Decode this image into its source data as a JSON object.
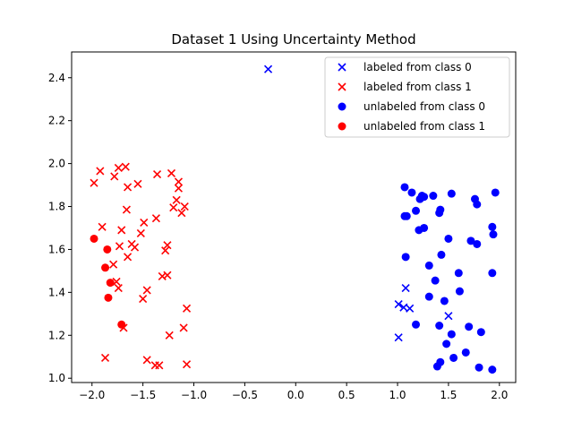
{
  "chart_data": {
    "type": "scatter",
    "title": "Dataset 1 Using Uncertainty Method",
    "xlabel": "",
    "ylabel": "",
    "xlim": [
      -2.2,
      2.16
    ],
    "ylim": [
      0.98,
      2.52
    ],
    "xticks": [
      -2.0,
      -1.5,
      -1.0,
      -0.5,
      0.0,
      0.5,
      1.0,
      1.5,
      2.0
    ],
    "xtick_labels": [
      "−2.0",
      "−1.5",
      "−1.0",
      "−0.5",
      "0.0",
      "0.5",
      "1.0",
      "1.5",
      "2.0"
    ],
    "yticks": [
      1.0,
      1.2,
      1.4,
      1.6,
      1.8,
      2.0,
      2.2,
      2.4
    ],
    "ytick_labels": [
      "1.0",
      "1.2",
      "1.4",
      "1.6",
      "1.8",
      "2.0",
      "2.2",
      "2.4"
    ],
    "grid": false,
    "legend_position": "top-right",
    "series": [
      {
        "name": "labeled from class 0",
        "marker": "x",
        "color": "#0000ff",
        "points": [
          [
            -0.27,
            2.44
          ],
          [
            1.01,
            1.345
          ],
          [
            1.06,
            1.33
          ],
          [
            1.08,
            1.42
          ],
          [
            1.12,
            1.325
          ],
          [
            1.01,
            1.19
          ],
          [
            1.5,
            1.29
          ]
        ]
      },
      {
        "name": "labeled from class 1",
        "marker": "x",
        "color": "#ff0000",
        "points": [
          [
            -1.92,
            1.965
          ],
          [
            -1.74,
            1.98
          ],
          [
            -1.67,
            1.985
          ],
          [
            -1.22,
            1.955
          ],
          [
            -1.36,
            1.95
          ],
          [
            -1.78,
            1.94
          ],
          [
            -1.98,
            1.91
          ],
          [
            -1.55,
            1.905
          ],
          [
            -1.65,
            1.89
          ],
          [
            -1.15,
            1.915
          ],
          [
            -1.15,
            1.885
          ],
          [
            -1.17,
            1.83
          ],
          [
            -1.09,
            1.8
          ],
          [
            -1.2,
            1.795
          ],
          [
            -1.66,
            1.785
          ],
          [
            -1.12,
            1.77
          ],
          [
            -1.37,
            1.745
          ],
          [
            -1.49,
            1.725
          ],
          [
            -1.9,
            1.705
          ],
          [
            -1.71,
            1.69
          ],
          [
            -1.52,
            1.675
          ],
          [
            -1.61,
            1.625
          ],
          [
            -1.26,
            1.62
          ],
          [
            -1.58,
            1.61
          ],
          [
            -1.73,
            1.615
          ],
          [
            -1.28,
            1.595
          ],
          [
            -1.65,
            1.565
          ],
          [
            -1.79,
            1.53
          ],
          [
            -1.26,
            1.48
          ],
          [
            -1.31,
            1.475
          ],
          [
            -1.76,
            1.45
          ],
          [
            -1.74,
            1.42
          ],
          [
            -1.46,
            1.41
          ],
          [
            -1.5,
            1.37
          ],
          [
            -1.07,
            1.325
          ],
          [
            -1.69,
            1.235
          ],
          [
            -1.1,
            1.235
          ],
          [
            -1.24,
            1.2
          ],
          [
            -1.87,
            1.095
          ],
          [
            -1.46,
            1.085
          ],
          [
            -1.38,
            1.06
          ],
          [
            -1.34,
            1.06
          ],
          [
            -1.07,
            1.065
          ]
        ]
      },
      {
        "name": "unlabeled from class 0",
        "marker": "o",
        "color": "#0000ff",
        "points": [
          [
            1.07,
            1.89
          ],
          [
            1.14,
            1.865
          ],
          [
            1.24,
            1.85
          ],
          [
            1.26,
            1.845
          ],
          [
            1.22,
            1.835
          ],
          [
            1.35,
            1.85
          ],
          [
            1.53,
            1.86
          ],
          [
            1.76,
            1.835
          ],
          [
            1.78,
            1.81
          ],
          [
            1.96,
            1.865
          ],
          [
            1.18,
            1.78
          ],
          [
            1.42,
            1.785
          ],
          [
            1.41,
            1.77
          ],
          [
            1.07,
            1.755
          ],
          [
            1.09,
            1.755
          ],
          [
            1.26,
            1.7
          ],
          [
            1.21,
            1.69
          ],
          [
            1.93,
            1.705
          ],
          [
            1.94,
            1.67
          ],
          [
            1.5,
            1.65
          ],
          [
            1.72,
            1.64
          ],
          [
            1.78,
            1.625
          ],
          [
            1.08,
            1.565
          ],
          [
            1.43,
            1.575
          ],
          [
            1.31,
            1.525
          ],
          [
            1.6,
            1.49
          ],
          [
            1.93,
            1.49
          ],
          [
            1.37,
            1.455
          ],
          [
            1.61,
            1.405
          ],
          [
            1.31,
            1.38
          ],
          [
            1.46,
            1.36
          ],
          [
            1.18,
            1.25
          ],
          [
            1.41,
            1.245
          ],
          [
            1.7,
            1.24
          ],
          [
            1.53,
            1.205
          ],
          [
            1.82,
            1.215
          ],
          [
            1.48,
            1.16
          ],
          [
            1.67,
            1.12
          ],
          [
            1.55,
            1.095
          ],
          [
            1.42,
            1.075
          ],
          [
            1.39,
            1.055
          ],
          [
            1.8,
            1.05
          ],
          [
            1.93,
            1.04
          ]
        ]
      },
      {
        "name": "unlabeled from class 1",
        "marker": "o",
        "color": "#ff0000",
        "points": [
          [
            -1.98,
            1.65
          ],
          [
            -1.85,
            1.6
          ],
          [
            -1.87,
            1.515
          ],
          [
            -1.82,
            1.445
          ],
          [
            -1.84,
            1.375
          ],
          [
            -1.71,
            1.25
          ]
        ]
      }
    ]
  }
}
